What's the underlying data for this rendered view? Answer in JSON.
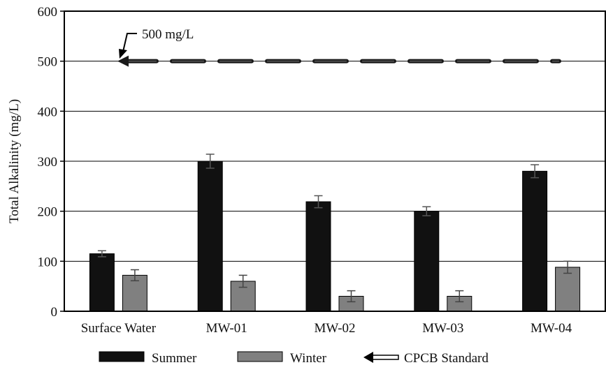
{
  "chart_data": {
    "type": "bar",
    "title": "",
    "xlabel": "",
    "ylabel": "Total Alkalinity (mg/L)",
    "ylim": [
      0,
      600
    ],
    "yticks": [
      0,
      100,
      200,
      300,
      400,
      500,
      600
    ],
    "grid": true,
    "categories": [
      "Surface Water",
      "MW-01",
      "MW-02",
      "MW-03",
      "MW-04"
    ],
    "series": [
      {
        "name": "Summer",
        "color": "#111111",
        "values": [
          115,
          300,
          219,
          200,
          280
        ],
        "errors": [
          6,
          14,
          12,
          9,
          13
        ]
      },
      {
        "name": "Winter",
        "color": "#808080",
        "values": [
          72,
          60,
          30,
          30,
          88
        ],
        "errors": [
          11,
          12,
          11,
          11,
          12
        ]
      }
    ],
    "reference_line": {
      "name": "CPCB Standard",
      "value": 500,
      "annotation": "500 mg/L"
    },
    "legend_position": "bottom"
  },
  "colors": {
    "summer": "#111111",
    "winter": "#808080",
    "grid": "#000000"
  }
}
